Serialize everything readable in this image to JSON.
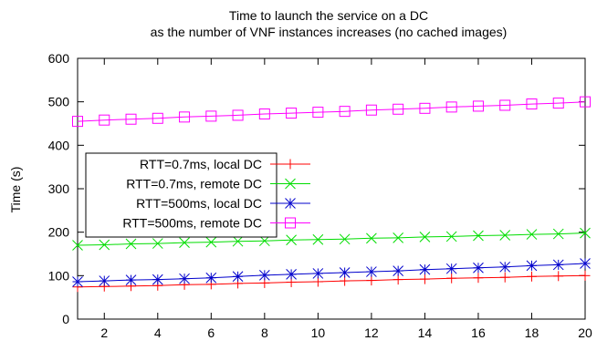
{
  "chart_data": {
    "type": "line",
    "title": "Time to launch the service on a DC",
    "subtitle": "as the number of VNF instances increases (no cached images)",
    "xlabel": "",
    "ylabel": "Time (s)",
    "xlim": [
      1,
      20
    ],
    "ylim": [
      0,
      600
    ],
    "x_ticks": [
      2,
      4,
      6,
      8,
      10,
      12,
      14,
      16,
      18,
      20
    ],
    "y_ticks": [
      0,
      100,
      200,
      300,
      400,
      500,
      600
    ],
    "grid": false,
    "legend_position": "middle-left",
    "x": [
      1,
      2,
      3,
      4,
      5,
      6,
      7,
      8,
      9,
      10,
      11,
      12,
      13,
      14,
      15,
      16,
      17,
      18,
      19,
      20
    ],
    "series": [
      {
        "name": "RTT=0.7ms, local DC",
        "color": "#ff0000",
        "marker": "plus",
        "values": [
          74,
          75,
          76,
          77,
          79,
          80,
          82,
          83,
          85,
          86,
          88,
          89,
          91,
          92,
          94,
          95,
          96,
          98,
          99,
          100
        ]
      },
      {
        "name": "RTT=0.7ms, remote DC",
        "color": "#00dd00",
        "marker": "cross",
        "values": [
          170,
          171,
          173,
          174,
          176,
          177,
          179,
          180,
          182,
          183,
          184,
          186,
          187,
          189,
          190,
          192,
          193,
          195,
          196,
          198
        ]
      },
      {
        "name": "RTT=500ms, local DC",
        "color": "#0000cc",
        "marker": "star",
        "values": [
          86,
          88,
          90,
          91,
          93,
          95,
          98,
          101,
          103,
          105,
          107,
          109,
          111,
          114,
          116,
          118,
          120,
          123,
          125,
          128
        ]
      },
      {
        "name": "RTT=500ms, remote DC",
        "color": "#ff00ff",
        "marker": "square",
        "values": [
          455,
          458,
          460,
          462,
          465,
          467,
          469,
          472,
          474,
          476,
          478,
          481,
          483,
          485,
          488,
          490,
          492,
          495,
          497,
          500
        ]
      }
    ]
  }
}
